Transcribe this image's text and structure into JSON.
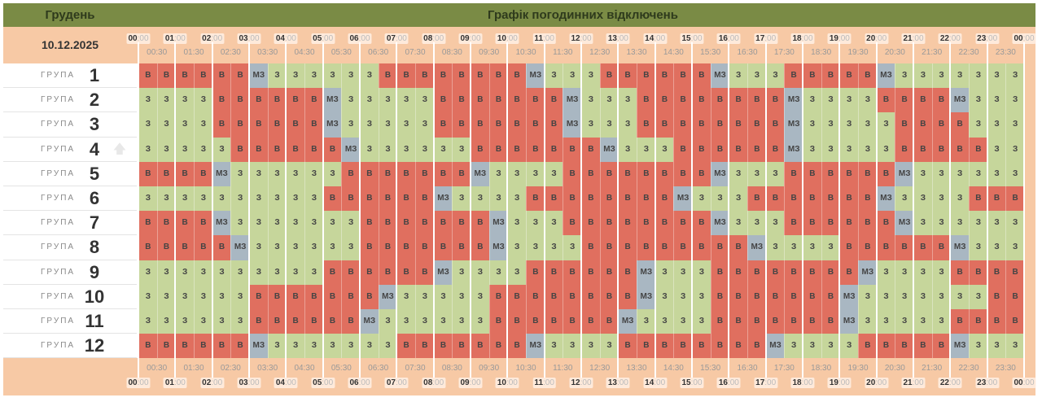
{
  "header": {
    "month": "Грудень",
    "title": "Графік погодинних відключень",
    "date": "10.12.2025"
  },
  "hours": [
    "00",
    "01",
    "02",
    "03",
    "04",
    "05",
    "06",
    "07",
    "08",
    "09",
    "10",
    "11",
    "12",
    "13",
    "14",
    "15",
    "16",
    "17",
    "18",
    "19",
    "20",
    "21",
    "22",
    "23",
    "00"
  ],
  "hour_suffix": ":00",
  "half_hours": [
    "00:30",
    "01:30",
    "02:30",
    "03:30",
    "04:30",
    "05:30",
    "06:30",
    "07:30",
    "08:30",
    "09:30",
    "10:30",
    "11:30",
    "12:30",
    "13:30",
    "14:30",
    "15:30",
    "16:30",
    "17:30",
    "18:30",
    "19:30",
    "20:30",
    "21:30",
    "22:30",
    "23:30"
  ],
  "group_word": "ГРУПА",
  "colors": {
    "header": "#7a8b45",
    "peach": "#f7c9a5",
    "В": "#e06f5f",
    "З": "#c6d69b",
    "МЗ": "#a9b7c2"
  },
  "icons": {
    "row4": "arrow-up-icon"
  },
  "groups": [
    {
      "num": "1",
      "cells": [
        "В",
        "В",
        "В",
        "В",
        "В",
        "В",
        "МЗ",
        "З",
        "З",
        "З",
        "З",
        "З",
        "З",
        "В",
        "В",
        "В",
        "В",
        "В",
        "В",
        "В",
        "В",
        "МЗ",
        "З",
        "З",
        "З",
        "В",
        "В",
        "В",
        "В",
        "В",
        "В",
        "МЗ",
        "З",
        "З",
        "З",
        "В",
        "В",
        "В",
        "В",
        "В",
        "МЗ",
        "З",
        "З",
        "З",
        "З",
        "З",
        "З",
        "З"
      ]
    },
    {
      "num": "2",
      "cells": [
        "З",
        "З",
        "З",
        "З",
        "В",
        "В",
        "В",
        "В",
        "В",
        "В",
        "МЗ",
        "З",
        "З",
        "З",
        "З",
        "З",
        "В",
        "В",
        "В",
        "В",
        "В",
        "В",
        "В",
        "МЗ",
        "З",
        "З",
        "З",
        "В",
        "В",
        "В",
        "В",
        "В",
        "В",
        "В",
        "В",
        "МЗ",
        "З",
        "З",
        "З",
        "З",
        "В",
        "В",
        "В",
        "В",
        "МЗ",
        "З",
        "З",
        "З"
      ]
    },
    {
      "num": "3",
      "cells": [
        "З",
        "З",
        "З",
        "З",
        "В",
        "В",
        "В",
        "В",
        "В",
        "В",
        "МЗ",
        "З",
        "З",
        "З",
        "З",
        "З",
        "В",
        "В",
        "В",
        "В",
        "В",
        "В",
        "В",
        "МЗ",
        "З",
        "З",
        "З",
        "В",
        "В",
        "В",
        "В",
        "В",
        "В",
        "В",
        "В",
        "МЗ",
        "З",
        "З",
        "З",
        "З",
        "З",
        "В",
        "В",
        "В",
        "В",
        "З",
        "З",
        "З"
      ]
    },
    {
      "num": "4",
      "cells": [
        "З",
        "З",
        "З",
        "З",
        "З",
        "В",
        "В",
        "В",
        "В",
        "В",
        "В",
        "МЗ",
        "З",
        "З",
        "З",
        "З",
        "З",
        "З",
        "В",
        "В",
        "В",
        "В",
        "В",
        "В",
        "В",
        "МЗ",
        "З",
        "З",
        "З",
        "В",
        "В",
        "В",
        "В",
        "В",
        "В",
        "МЗ",
        "З",
        "З",
        "З",
        "З",
        "З",
        "В",
        "В",
        "В",
        "В",
        "В",
        "З",
        "З"
      ]
    },
    {
      "num": "5",
      "cells": [
        "В",
        "В",
        "В",
        "В",
        "МЗ",
        "З",
        "З",
        "З",
        "З",
        "З",
        "З",
        "В",
        "В",
        "В",
        "В",
        "В",
        "В",
        "В",
        "МЗ",
        "З",
        "З",
        "З",
        "З",
        "В",
        "В",
        "В",
        "В",
        "В",
        "В",
        "В",
        "В",
        "МЗ",
        "З",
        "З",
        "З",
        "В",
        "В",
        "В",
        "В",
        "В",
        "В",
        "МЗ",
        "З",
        "З",
        "З",
        "З",
        "З",
        "З"
      ]
    },
    {
      "num": "6",
      "cells": [
        "З",
        "З",
        "З",
        "З",
        "З",
        "З",
        "З",
        "З",
        "З",
        "З",
        "В",
        "В",
        "В",
        "В",
        "В",
        "В",
        "МЗ",
        "З",
        "З",
        "З",
        "З",
        "В",
        "В",
        "В",
        "В",
        "В",
        "В",
        "В",
        "В",
        "МЗ",
        "З",
        "З",
        "З",
        "В",
        "В",
        "В",
        "В",
        "В",
        "В",
        "В",
        "МЗ",
        "З",
        "З",
        "З",
        "З",
        "В",
        "В",
        "В"
      ]
    },
    {
      "num": "7",
      "cells": [
        "В",
        "В",
        "В",
        "В",
        "МЗ",
        "З",
        "З",
        "З",
        "З",
        "З",
        "З",
        "З",
        "В",
        "В",
        "В",
        "В",
        "В",
        "В",
        "В",
        "МЗ",
        "З",
        "З",
        "З",
        "В",
        "В",
        "В",
        "В",
        "В",
        "В",
        "В",
        "В",
        "МЗ",
        "З",
        "З",
        "З",
        "В",
        "В",
        "В",
        "В",
        "В",
        "В",
        "МЗ",
        "З",
        "З",
        "З",
        "З",
        "З",
        "З"
      ]
    },
    {
      "num": "8",
      "cells": [
        "В",
        "В",
        "В",
        "В",
        "В",
        "МЗ",
        "З",
        "З",
        "З",
        "З",
        "З",
        "З",
        "В",
        "В",
        "В",
        "В",
        "В",
        "В",
        "В",
        "МЗ",
        "З",
        "З",
        "З",
        "З",
        "В",
        "В",
        "В",
        "В",
        "В",
        "В",
        "В",
        "В",
        "В",
        "МЗ",
        "З",
        "З",
        "З",
        "З",
        "В",
        "В",
        "В",
        "В",
        "В",
        "В",
        "МЗ",
        "З",
        "З",
        "З"
      ]
    },
    {
      "num": "9",
      "cells": [
        "З",
        "З",
        "З",
        "З",
        "З",
        "З",
        "З",
        "З",
        "З",
        "З",
        "В",
        "В",
        "В",
        "В",
        "В",
        "В",
        "МЗ",
        "З",
        "З",
        "З",
        "З",
        "В",
        "В",
        "В",
        "В",
        "В",
        "В",
        "МЗ",
        "З",
        "З",
        "З",
        "В",
        "В",
        "В",
        "В",
        "В",
        "В",
        "В",
        "В",
        "МЗ",
        "З",
        "З",
        "З",
        "З",
        "В",
        "В",
        "В",
        "В"
      ]
    },
    {
      "num": "10",
      "cells": [
        "З",
        "З",
        "З",
        "З",
        "З",
        "З",
        "В",
        "В",
        "В",
        "В",
        "В",
        "В",
        "В",
        "МЗ",
        "З",
        "З",
        "З",
        "З",
        "З",
        "В",
        "В",
        "В",
        "В",
        "В",
        "В",
        "В",
        "В",
        "МЗ",
        "З",
        "З",
        "З",
        "В",
        "В",
        "В",
        "В",
        "В",
        "В",
        "В",
        "МЗ",
        "З",
        "З",
        "З",
        "З",
        "З",
        "З",
        "З",
        "В",
        "В"
      ]
    },
    {
      "num": "11",
      "cells": [
        "З",
        "З",
        "З",
        "З",
        "З",
        "З",
        "В",
        "В",
        "В",
        "В",
        "В",
        "В",
        "МЗ",
        "З",
        "З",
        "З",
        "З",
        "З",
        "З",
        "В",
        "В",
        "В",
        "В",
        "В",
        "В",
        "В",
        "МЗ",
        "З",
        "З",
        "З",
        "З",
        "В",
        "В",
        "В",
        "В",
        "В",
        "В",
        "В",
        "МЗ",
        "З",
        "З",
        "З",
        "З",
        "З",
        "В",
        "В",
        "В",
        "В"
      ]
    },
    {
      "num": "12",
      "cells": [
        "В",
        "В",
        "В",
        "В",
        "В",
        "В",
        "МЗ",
        "З",
        "З",
        "З",
        "З",
        "З",
        "З",
        "З",
        "В",
        "В",
        "В",
        "В",
        "В",
        "В",
        "В",
        "МЗ",
        "З",
        "З",
        "З",
        "З",
        "В",
        "В",
        "В",
        "В",
        "В",
        "В",
        "В",
        "В",
        "МЗ",
        "З",
        "З",
        "З",
        "З",
        "В",
        "В",
        "В",
        "В",
        "В",
        "МЗ",
        "З",
        "З",
        "З"
      ]
    }
  ]
}
